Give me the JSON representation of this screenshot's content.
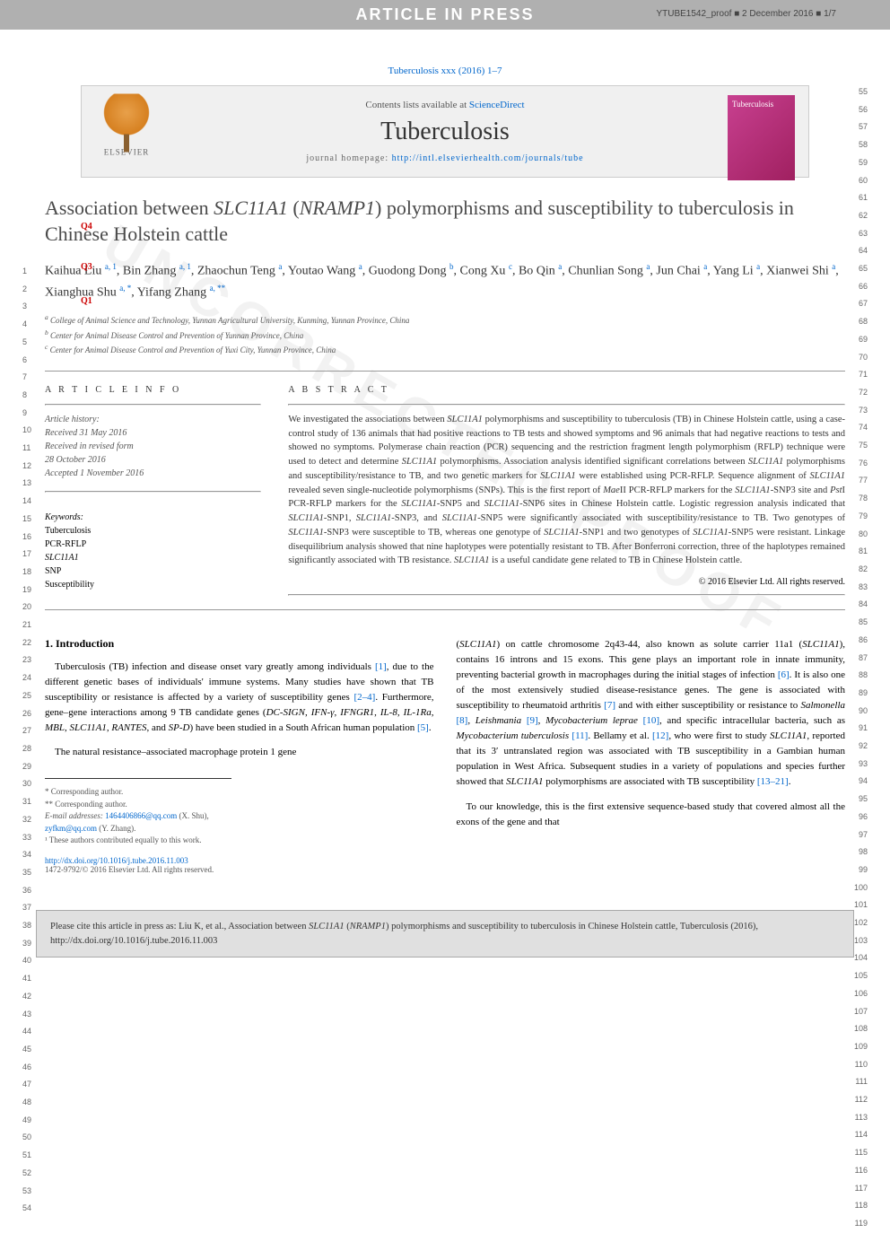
{
  "header": {
    "banner": "ARTICLE IN PRESS",
    "proof_info": "YTUBE1542_proof ■ 2 December 2016 ■ 1/7",
    "citation_line": "Tuberculosis xxx (2016) 1–7",
    "contents_available": "Contents lists available at ",
    "sciencedirect": "ScienceDirect",
    "journal": "Tuberculosis",
    "homepage_label": "journal homepage: ",
    "homepage_url": "http://intl.elsevierhealth.com/journals/tube",
    "elsevier": "ELSEVIER",
    "cover_title": "Tuberculosis"
  },
  "title": {
    "line1": "Association between ",
    "gene1": "SLC11A1",
    "paren": " (",
    "gene2": "NRAMP1",
    "line2": ") polymorphisms and susceptibility to tuberculosis in Chinese Holstein cattle"
  },
  "q_markers": {
    "q4": "Q4",
    "q3": "Q3",
    "q1": "Q1"
  },
  "authors": "Kaihua Liu <sup>a, 1</sup>, Bin Zhang <sup>a, 1</sup>, Zhaochun Teng <sup>a</sup>, Youtao Wang <sup>a</sup>, Guodong Dong <sup>b</sup>, Cong Xu <sup>c</sup>, Bo Qin <sup>a</sup>, Chunlian Song <sup>a</sup>, Jun Chai <sup>a</sup>, Yang Li <sup>a</sup>, Xianwei Shi <sup>a</sup>, Xianghua Shu <sup>a, *</sup>, Yifang Zhang <sup>a, **</sup>",
  "affiliations": {
    "a": "College of Animal Science and Technology, Yunnan Agricultural University, Kunming, Yunnan Province, China",
    "b": "Center for Animal Disease Control and Prevention of Yunnan Province, China",
    "c": "Center for Animal Disease Control and Prevention of Yuxi City, Yunnan Province, China"
  },
  "article_info": {
    "heading": "A R T I C L E   I N F O",
    "history_title": "Article history:",
    "received": "Received 31 May 2016",
    "revised1": "Received in revised form",
    "revised2": "28 October 2016",
    "accepted": "Accepted 1 November 2016",
    "keywords_title": "Keywords:",
    "keywords": [
      "Tuberculosis",
      "PCR-RFLP",
      "SLC11A1",
      "SNP",
      "Susceptibility"
    ]
  },
  "abstract": {
    "heading": "A B S T R A C T",
    "text": "We investigated the associations between SLC11A1 polymorphisms and susceptibility to tuberculosis (TB) in Chinese Holstein cattle, using a case-control study of 136 animals that had positive reactions to TB tests and showed symptoms and 96 animals that had negative reactions to tests and showed no symptoms. Polymerase chain reaction (PCR) sequencing and the restriction fragment length polymorphism (RFLP) technique were used to detect and determine SLC11A1 polymorphisms. Association analysis identified significant correlations between SLC11A1 polymorphisms and susceptibility/resistance to TB, and two genetic markers for SLC11A1 were established using PCR-RFLP. Sequence alignment of SLC11A1 revealed seven single-nucleotide polymorphisms (SNPs). This is the first report of MaeII PCR-RFLP markers for the SLC11A1-SNP3 site and PstI PCR-RFLP markers for the SLC11A1-SNP5 and SLC11A1-SNP6 sites in Chinese Holstein cattle. Logistic regression analysis indicated that SLC11A1-SNP1, SLC11A1-SNP3, and SLC11A1-SNP5 were significantly associated with susceptibility/resistance to TB. Two genotypes of SLC11A1-SNP3 were susceptible to TB, whereas one genotype of SLC11A1-SNP1 and two genotypes of SLC11A1-SNP5 were resistant. Linkage disequilibrium analysis showed that nine haplotypes were potentially resistant to TB. After Bonferroni correction, three of the haplotypes remained significantly associated with TB resistance. SLC11A1 is a useful candidate gene related to TB in Chinese Holstein cattle.",
    "copyright": "© 2016 Elsevier Ltd. All rights reserved."
  },
  "body": {
    "section_title": "1. Introduction",
    "col1_p1": "Tuberculosis (TB) infection and disease onset vary greatly among individuals [1], due to the different genetic bases of individuals' immune systems. Many studies have shown that TB susceptibility or resistance is affected by a variety of susceptibility genes [2–4]. Furthermore, gene–gene interactions among 9 TB candidate genes (DC-SIGN, IFN-γ, IFNGR1, IL-8, IL-1Ra, MBL, SLC11A1, RANTES, and SP-D) have been studied in a South African human population [5].",
    "col1_p2": "The natural resistance–associated macrophage protein 1 gene",
    "col2_p1": "(SLC11A1) on cattle chromosome 2q43-44, also known as solute carrier 11a1 (SLC11A1), contains 16 introns and 15 exons. This gene plays an important role in innate immunity, preventing bacterial growth in macrophages during the initial stages of infection [6]. It is also one of the most extensively studied disease-resistance genes. The gene is associated with susceptibility to rheumatoid arthritis [7] and with either susceptibility or resistance to Salmonella [8], Leishmania [9], Mycobacterium leprae [10], and specific intracellular bacteria, such as Mycobacterium tuberculosis [11]. Bellamy et al. [12], who were first to study SLC11A1, reported that its 3′ untranslated region was associated with TB susceptibility in a Gambian human population in West Africa. Subsequent studies in a variety of populations and species further showed that SLC11A1 polymorphisms are associated with TB susceptibility [13–21].",
    "col2_p2": "To our knowledge, this is the first extensive sequence-based study that covered almost all the exons of the gene and that"
  },
  "footnotes": {
    "corr1": "* Corresponding author.",
    "corr2": "** Corresponding author.",
    "email_label": "E-mail addresses: ",
    "email1": "1464406866@qq.com",
    "email1_name": " (X. Shu), ",
    "email2": "zyfkm@qq.com",
    "email2_name": " (Y. Zhang).",
    "equal": "¹ These authors contributed equally to this work."
  },
  "doi": {
    "url": "http://dx.doi.org/10.1016/j.tube.2016.11.003",
    "copyright": "1472-9792/© 2016 Elsevier Ltd. All rights reserved."
  },
  "cite_box": "Please cite this article in press as: Liu K, et al., Association between SLC11A1 (NRAMP1) polymorphisms and susceptibility to tuberculosis in Chinese Holstein cattle, Tuberculosis (2016), http://dx.doi.org/10.1016/j.tube.2016.11.003",
  "line_numbers": {
    "left_start": 1,
    "left_end": 54,
    "right_start": 55,
    "right_end": 119
  },
  "watermark": "UNCORRECTED PROOF"
}
